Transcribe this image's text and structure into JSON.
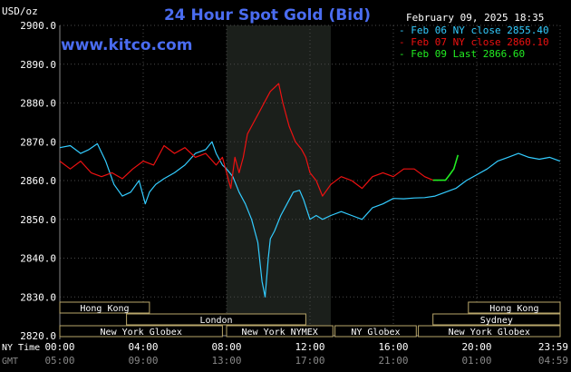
{
  "chart_data": {
    "type": "line",
    "title": "24 Hour Spot Gold (Bid)",
    "source": "www.kitco.com",
    "datestamp": "February 09, 2025 18:35",
    "ylabel": "USD/oz",
    "ylim": [
      2820,
      2900
    ],
    "yticks": [
      "2900.0",
      "2890.0",
      "2880.0",
      "2870.0",
      "2860.0",
      "2850.0",
      "2840.0",
      "2830.0",
      "2820.0"
    ],
    "xlim": [
      0,
      24
    ],
    "grid": true,
    "x_axis_rows": [
      {
        "label": "NY Time",
        "ticks": [
          "00:00",
          "04:00",
          "08:00",
          "12:00",
          "16:00",
          "20:00",
          "23:59"
        ]
      },
      {
        "label": "GMT",
        "ticks": [
          "05:00",
          "09:00",
          "13:00",
          "17:00",
          "21:00",
          "01:00",
          "04:59"
        ]
      }
    ],
    "shaded_session_hours": [
      8.0,
      13.0
    ],
    "legend": [
      {
        "text": "Feb 06 NY close 2855.40",
        "color": "#33ccff"
      },
      {
        "text": "Feb 07 NY close 2860.10",
        "color": "#ee1111"
      },
      {
        "text": "Feb 09 Last 2866.60",
        "color": "#22ee22"
      }
    ],
    "series": [
      {
        "name": "Feb 06",
        "color": "#33ccff",
        "x": [
          0,
          0.5,
          1,
          1.4,
          1.8,
          2.2,
          2.6,
          3,
          3.4,
          3.8,
          4.1,
          4.3,
          4.6,
          5,
          5.5,
          6,
          6.5,
          7,
          7.3,
          7.5,
          7.8,
          8,
          8.3,
          8.6,
          8.9,
          9.2,
          9.5,
          9.7,
          9.85,
          10,
          10.1,
          10.3,
          10.6,
          10.9,
          11.2,
          11.5,
          11.7,
          12,
          12.3,
          12.6,
          13,
          13.5,
          14,
          14.5,
          15,
          15.5,
          16,
          16.5,
          17,
          17.5,
          18,
          18.5,
          19,
          19.5,
          20,
          20.5,
          21,
          21.5,
          22,
          22.5,
          23,
          23.5,
          23.99
        ],
        "values": [
          2868.5,
          2869,
          2867,
          2868,
          2869.5,
          2865,
          2859,
          2856,
          2857,
          2860,
          2854,
          2857,
          2859,
          2860.5,
          2862,
          2864,
          2867,
          2868,
          2870,
          2867,
          2864,
          2863,
          2861,
          2857,
          2854,
          2850,
          2844,
          2834,
          2830,
          2840,
          2845,
          2847,
          2851,
          2854,
          2857,
          2857.5,
          2855,
          2850,
          2851,
          2850,
          2851,
          2852,
          2851,
          2850,
          2853,
          2854,
          2855.4,
          2855.3,
          2855.5,
          2855.6,
          2856,
          2857,
          2858,
          2860,
          2861.5,
          2863,
          2865,
          2866,
          2867,
          2866,
          2865.5,
          2866,
          2865
        ]
      },
      {
        "name": "Feb 07",
        "color": "#ee1111",
        "x": [
          0,
          0.5,
          1,
          1.5,
          2,
          2.5,
          3,
          3.5,
          4,
          4.5,
          5,
          5.5,
          6,
          6.5,
          7,
          7.5,
          7.8,
          8,
          8.2,
          8.4,
          8.6,
          8.8,
          9,
          9.3,
          9.6,
          9.9,
          10.1,
          10.3,
          10.5,
          10.7,
          11,
          11.3,
          11.6,
          11.8,
          12,
          12.3,
          12.6,
          13,
          13.5,
          14,
          14.5,
          15,
          15.5,
          16,
          16.5,
          17,
          17.5,
          17.9
        ],
        "values": [
          2865,
          2863,
          2865,
          2862,
          2861,
          2862,
          2860.5,
          2863,
          2865,
          2864,
          2869,
          2867,
          2868.5,
          2866,
          2867,
          2864,
          2866,
          2862,
          2858,
          2866,
          2862,
          2866,
          2872,
          2875,
          2878,
          2881,
          2883,
          2884,
          2885,
          2880,
          2874,
          2870,
          2868,
          2866,
          2862,
          2860,
          2856,
          2859,
          2861,
          2860,
          2858,
          2861,
          2862,
          2861,
          2863,
          2863,
          2861,
          2860.1
        ]
      },
      {
        "name": "Feb 09",
        "color": "#22ee22",
        "x": [
          17.9,
          18.5,
          18.7,
          18.9,
          19.1
        ],
        "values": [
          2860.1,
          2860.1,
          2861.5,
          2863,
          2866.6
        ]
      }
    ],
    "sessions": [
      {
        "name": "Hong Kong",
        "row": 0,
        "start": 0.0,
        "end": 4.3
      },
      {
        "name": "Hong Kong",
        "row": 0,
        "start": 19.6,
        "end": 24.0
      },
      {
        "name": "London",
        "row": 1,
        "start": 3.2,
        "end": 11.8
      },
      {
        "name": "Sydney",
        "row": 1,
        "start": 17.9,
        "end": 24.0
      },
      {
        "name": "New York Globex",
        "row": 2,
        "start": 0.0,
        "end": 7.8
      },
      {
        "name": "New York NYMEX",
        "row": 2,
        "start": 8.0,
        "end": 13.1
      },
      {
        "name": "NY Globex",
        "row": 2,
        "start": 13.2,
        "end": 17.1
      },
      {
        "name": "New York Globex",
        "row": 2,
        "start": 17.2,
        "end": 24.0
      }
    ]
  }
}
